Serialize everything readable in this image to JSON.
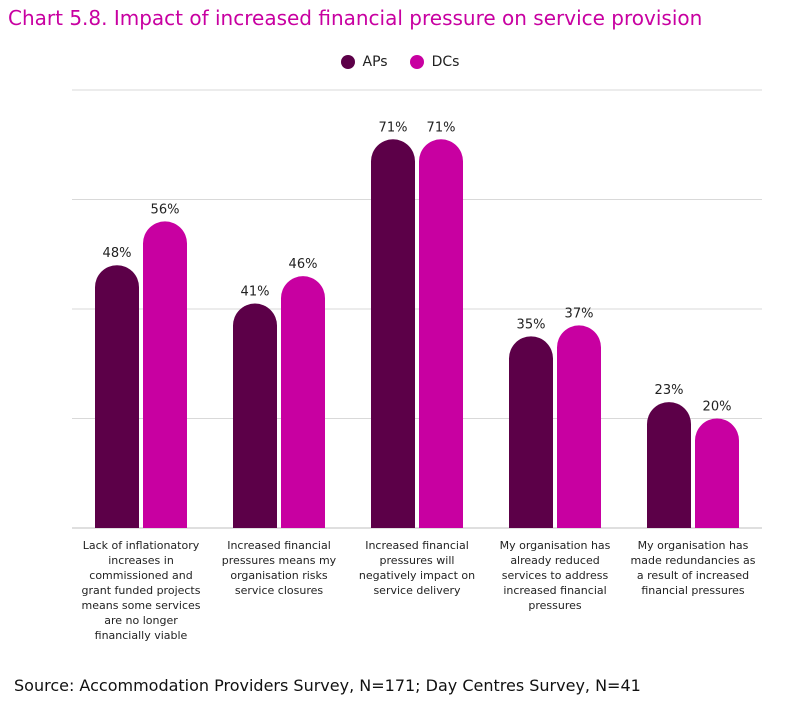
{
  "title": "Chart 5.8. Impact of increased financial pressure on service provision",
  "source": "Source: Accommodation Providers Survey, N=171; Day Centres Survey, N=41",
  "colors": {
    "aps": "#5c0048",
    "dcs": "#c800a1",
    "grid": "#d9d9d9",
    "title": "#c800a1"
  },
  "chart_data": {
    "type": "bar",
    "categories": [
      "Lack of inflationatory increases in commissioned and grant funded projects means some services are no longer financially viable",
      "Increased financial pressures means my organisation risks service closures",
      "Increased financial pressures will negatively impact on service delivery",
      "My organisation has already reduced services to address increased financial pressures",
      "My organisation has made redundancies as a result of increased financial pressures"
    ],
    "series": [
      {
        "name": "APs",
        "values": [
          48,
          41,
          71,
          35,
          23
        ],
        "labels": [
          "48%",
          "41%",
          "71%",
          "35%",
          "23%"
        ]
      },
      {
        "name": "DCs",
        "values": [
          56,
          46,
          71,
          37,
          20
        ],
        "labels": [
          "56%",
          "46%",
          "71%",
          "37%",
          "20%"
        ]
      }
    ],
    "ylim": [
      0,
      80
    ],
    "grid": true,
    "legend": "top-center",
    "xlabel": "",
    "ylabel": ""
  }
}
